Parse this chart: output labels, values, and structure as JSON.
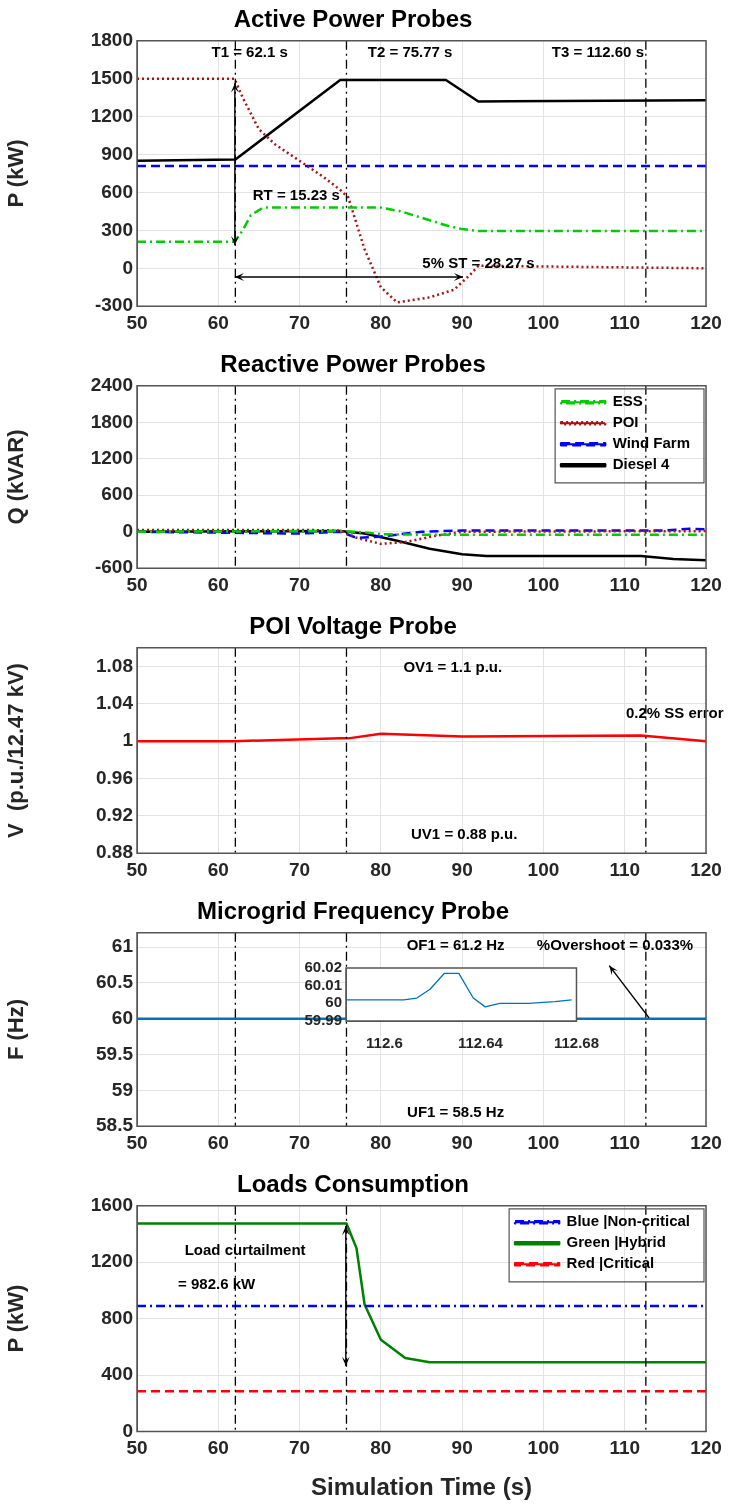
{
  "chart_data": [
    {
      "type": "line",
      "title": "Active Power Probes",
      "ylabel": "P (kW)",
      "xlim": [
        50,
        120
      ],
      "xticks": [
        50,
        60,
        70,
        80,
        90,
        100,
        110,
        120
      ],
      "ylim": [
        -300,
        1800
      ],
      "yticks": [
        -300,
        0,
        300,
        600,
        900,
        1200,
        1500,
        1800
      ],
      "grid": true,
      "series": [
        {
          "color": "#00cc00",
          "line_style": "dashdot",
          "x": [
            50,
            62,
            63,
            64,
            65.5,
            80,
            82.5,
            85,
            88,
            90,
            92,
            120
          ],
          "values": [
            210,
            210,
            300,
            420,
            480,
            480,
            450,
            400,
            340,
            310,
            295,
            295
          ]
        },
        {
          "color": "#a31515",
          "line_style": "dotted",
          "x": [
            50,
            62,
            63,
            65,
            67,
            70,
            73,
            75,
            76,
            78,
            80,
            82,
            86,
            89,
            91,
            92,
            120
          ],
          "values": [
            1500,
            1500,
            1350,
            1100,
            980,
            850,
            720,
            620,
            560,
            150,
            -150,
            -270,
            -230,
            -170,
            -50,
            20,
            0
          ]
        },
        {
          "color": "#0000ff",
          "line_style": "dashed",
          "x": [
            50,
            120
          ],
          "values": [
            810,
            810
          ]
        },
        {
          "color": "#000000",
          "line_style": "solid",
          "x": [
            50,
            62.1,
            75,
            88,
            92,
            120
          ],
          "values": [
            850,
            860,
            1490,
            1490,
            1320,
            1330
          ]
        }
      ],
      "ref_lines": [
        {
          "axis": "x",
          "value": 62.1,
          "color": "#000000",
          "line_style": "dashdot"
        },
        {
          "axis": "x",
          "value": 75.77,
          "color": "#000000",
          "line_style": "dashdot"
        },
        {
          "axis": "x",
          "value": 112.6,
          "color": "#000000",
          "line_style": "dashdot"
        }
      ],
      "annotations": [
        "T1 = 62.1 s",
        "T2 = 75.77 s",
        "T3 = 112.60 s",
        "RT = 15.23 s",
        "5% ST = 28.27 s"
      ]
    },
    {
      "type": "line",
      "title": "Reactive Power Probes",
      "ylabel": "Q (kVAR)",
      "xlim": [
        50,
        120
      ],
      "xticks": [
        50,
        60,
        70,
        80,
        90,
        100,
        110,
        120
      ],
      "ylim": [
        -600,
        2400
      ],
      "yticks": [
        -600,
        0,
        600,
        1200,
        1800,
        2400
      ],
      "grid": true,
      "legend": "top right",
      "series": [
        {
          "name": "ESS",
          "color": "#00cc00",
          "line_style": "dashdot",
          "x": [
            50,
            75,
            78,
            80,
            85,
            90,
            120
          ],
          "values": [
            0,
            10,
            -10,
            -40,
            -50,
            -50,
            -50
          ]
        },
        {
          "name": "POI",
          "color": "#a31515",
          "line_style": "dotted",
          "x": [
            50,
            70,
            75,
            77,
            80,
            83,
            87,
            90,
            120
          ],
          "values": [
            30,
            30,
            20,
            -100,
            -200,
            -170,
            -60,
            0,
            10
          ]
        },
        {
          "name": "Wind Farm",
          "color": "#0000ff",
          "line_style": "dashed",
          "x": [
            50,
            70,
            75,
            77,
            80,
            85,
            90,
            115,
            118,
            120
          ],
          "values": [
            0,
            -30,
            0,
            -100,
            -80,
            0,
            20,
            20,
            50,
            40
          ]
        },
        {
          "name": "Diesel 4",
          "color": "#000000",
          "line_style": "solid",
          "x": [
            50,
            75,
            78,
            82,
            86,
            90,
            93,
            112,
            116,
            120
          ],
          "values": [
            0,
            10,
            -30,
            -150,
            -280,
            -370,
            -400,
            -400,
            -450,
            -470
          ]
        }
      ],
      "ref_lines": [
        {
          "axis": "x",
          "value": 62.1,
          "color": "#000000",
          "line_style": "dashdot"
        },
        {
          "axis": "x",
          "value": 75.77,
          "color": "#000000",
          "line_style": "dashdot"
        },
        {
          "axis": "x",
          "value": 112.6,
          "color": "#000000",
          "line_style": "dashdot"
        }
      ]
    },
    {
      "type": "line",
      "title": "POI Voltage Probe",
      "ylabel": "V  (p.u./12.47 kV)",
      "xlim": [
        50,
        120
      ],
      "xticks": [
        50,
        60,
        70,
        80,
        90,
        100,
        110,
        120
      ],
      "ylim": [
        0.88,
        1.1
      ],
      "yticks": [
        0.88,
        0.92,
        0.96,
        1,
        1.04,
        1.08
      ],
      "grid": true,
      "series": [
        {
          "color": "#ff0000",
          "line_style": "solid",
          "x": [
            50,
            62,
            75,
            76,
            80,
            90,
            112,
            120
          ],
          "values": [
            1,
            1,
            1.003,
            1.003,
            1.008,
            1.005,
            1.006,
            1
          ]
        }
      ],
      "ref_lines": [
        {
          "axis": "x",
          "value": 62.1,
          "color": "#000000",
          "line_style": "dashdot"
        },
        {
          "axis": "x",
          "value": 75.77,
          "color": "#000000",
          "line_style": "dashdot"
        },
        {
          "axis": "x",
          "value": 112.6,
          "color": "#000000",
          "line_style": "dashdot"
        }
      ],
      "annotations": [
        "OV1 = 1.1 p.u.",
        "UV1 = 0.88 p.u.",
        "0.2% SS error"
      ]
    },
    {
      "type": "line",
      "title": "Microgrid Frequency Probe",
      "ylabel": "F (Hz)",
      "xlim": [
        50,
        120
      ],
      "xticks": [
        50,
        60,
        70,
        80,
        90,
        100,
        110,
        120
      ],
      "ylim": [
        58.5,
        61.2
      ],
      "yticks": [
        58.5,
        59,
        59.5,
        60,
        60.5,
        61
      ],
      "grid": true,
      "series": [
        {
          "color": "#0072bd",
          "line_style": "solid",
          "x": [
            50,
            120
          ],
          "values": [
            60,
            60
          ]
        }
      ],
      "ref_lines": [
        {
          "axis": "x",
          "value": 62.1,
          "color": "#000000",
          "line_style": "dashdot"
        },
        {
          "axis": "x",
          "value": 75.77,
          "color": "#000000",
          "line_style": "dashdot"
        },
        {
          "axis": "x",
          "value": 112.6,
          "color": "#000000",
          "line_style": "dashdot"
        }
      ],
      "annotations": [
        "OF1 = 61.2 Hz",
        "UF1 = 58.5 Hz",
        "%Overshoot = 0.033%"
      ]
    },
    {
      "type": "line",
      "title": "Loads Consumption",
      "ylabel": "P (kW)",
      "xlabel": "Simulation Time (s)",
      "xlim": [
        50,
        120
      ],
      "xticks": [
        50,
        60,
        70,
        80,
        90,
        100,
        110,
        120
      ],
      "ylim": [
        0,
        1600
      ],
      "yticks": [
        0,
        400,
        800,
        1200,
        1600
      ],
      "grid": true,
      "legend": "top right",
      "series": [
        {
          "name": "Blue |Non-critical",
          "color": "#0000ff",
          "line_style": "dashdot",
          "x": [
            50,
            120
          ],
          "values": [
            890,
            890
          ]
        },
        {
          "name": "Green |Hybrid",
          "color": "#008000",
          "line_style": "solid",
          "x": [
            50,
            75.77,
            77,
            78,
            80,
            83,
            86,
            120
          ],
          "values": [
            1475,
            1475,
            1300,
            900,
            650,
            520,
            490,
            490
          ]
        },
        {
          "name": "Red |Critical",
          "color": "#ff0000",
          "line_style": "dashed",
          "x": [
            50,
            120
          ],
          "values": [
            285,
            285
          ]
        }
      ],
      "ref_lines": [
        {
          "axis": "x",
          "value": 62.1,
          "color": "#000000",
          "line_style": "dashdot"
        },
        {
          "axis": "x",
          "value": 75.77,
          "color": "#000000",
          "line_style": "dashdot"
        },
        {
          "axis": "x",
          "value": 112.6,
          "color": "#000000",
          "line_style": "dashdot"
        }
      ],
      "annotations": [
        "Load curtailment",
        "= 982.6 kW"
      ]
    },
    {
      "type": "line",
      "xlim": [
        112.584,
        112.68
      ],
      "xticks": [
        112.6,
        112.64,
        112.68
      ],
      "ylim": [
        59.99,
        60.02
      ],
      "yticks": [
        59.99,
        60,
        60.01,
        60.02
      ],
      "series": [
        {
          "color": "#0072bd",
          "line_style": "solid",
          "x": [
            112.584,
            112.608,
            112.6135,
            112.619,
            112.625,
            112.631,
            112.637,
            112.642,
            112.648,
            112.66,
            112.671,
            112.678
          ],
          "values": [
            60.002,
            60.002,
            60.003,
            60.008,
            60.017,
            60.017,
            60.003,
            59.998,
            60,
            60,
            60.001,
            60.002
          ]
        }
      ]
    }
  ]
}
